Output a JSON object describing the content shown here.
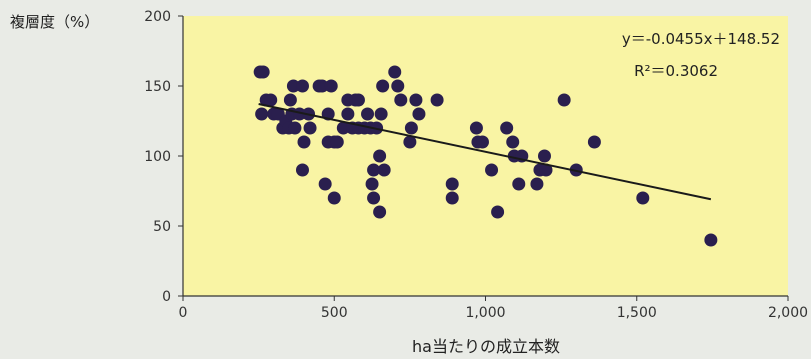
{
  "chart_data": {
    "type": "scatter",
    "title": "",
    "ylabel": "複層度（%）",
    "xlabel": "ha当たりの成立本数",
    "xlim": [
      0,
      2000
    ],
    "ylim": [
      0,
      200
    ],
    "x_ticks": [
      0,
      500,
      1000,
      1500,
      2000
    ],
    "x_tick_labels": [
      "0",
      "500",
      "1,000",
      "1,500",
      "2,000"
    ],
    "y_ticks": [
      0,
      50,
      100,
      150,
      200
    ],
    "y_tick_labels": [
      "0",
      "50",
      "100",
      "150",
      "200"
    ],
    "grid": false,
    "plot_background": "#f9f4a4",
    "point_color": "#2a1f4e",
    "trendline": {
      "slope": -0.0455,
      "intercept": 148.52,
      "x_range": [
        250,
        1745
      ],
      "equation_label": "y＝-0.0455x＋148.52",
      "r2_label": "R²＝0.3062"
    },
    "points": [
      [
        255,
        160
      ],
      [
        265,
        160
      ],
      [
        260,
        130
      ],
      [
        275,
        140
      ],
      [
        290,
        140
      ],
      [
        300,
        130
      ],
      [
        315,
        130
      ],
      [
        330,
        120
      ],
      [
        340,
        125
      ],
      [
        350,
        120
      ],
      [
        355,
        140
      ],
      [
        360,
        130
      ],
      [
        365,
        150
      ],
      [
        370,
        120
      ],
      [
        385,
        130
      ],
      [
        395,
        150
      ],
      [
        400,
        110
      ],
      [
        395,
        90
      ],
      [
        415,
        130
      ],
      [
        420,
        120
      ],
      [
        450,
        150
      ],
      [
        460,
        150
      ],
      [
        480,
        130
      ],
      [
        470,
        80
      ],
      [
        480,
        110
      ],
      [
        490,
        150
      ],
      [
        500,
        110
      ],
      [
        500,
        70
      ],
      [
        510,
        110
      ],
      [
        530,
        120
      ],
      [
        545,
        130
      ],
      [
        545,
        140
      ],
      [
        560,
        120
      ],
      [
        570,
        140
      ],
      [
        580,
        120
      ],
      [
        580,
        140
      ],
      [
        600,
        120
      ],
      [
        610,
        130
      ],
      [
        620,
        120
      ],
      [
        630,
        90
      ],
      [
        625,
        80
      ],
      [
        630,
        70
      ],
      [
        640,
        120
      ],
      [
        650,
        100
      ],
      [
        650,
        60
      ],
      [
        655,
        130
      ],
      [
        660,
        150
      ],
      [
        665,
        90
      ],
      [
        700,
        160
      ],
      [
        710,
        150
      ],
      [
        720,
        140
      ],
      [
        750,
        110
      ],
      [
        755,
        120
      ],
      [
        770,
        140
      ],
      [
        780,
        130
      ],
      [
        840,
        140
      ],
      [
        890,
        80
      ],
      [
        890,
        70
      ],
      [
        970,
        120
      ],
      [
        975,
        110
      ],
      [
        990,
        110
      ],
      [
        1020,
        90
      ],
      [
        1040,
        60
      ],
      [
        1070,
        120
      ],
      [
        1090,
        110
      ],
      [
        1095,
        100
      ],
      [
        1110,
        80
      ],
      [
        1120,
        100
      ],
      [
        1170,
        80
      ],
      [
        1180,
        90
      ],
      [
        1195,
        100
      ],
      [
        1200,
        90
      ],
      [
        1260,
        140
      ],
      [
        1300,
        90
      ],
      [
        1360,
        110
      ],
      [
        1520,
        70
      ],
      [
        1745,
        40
      ]
    ]
  }
}
